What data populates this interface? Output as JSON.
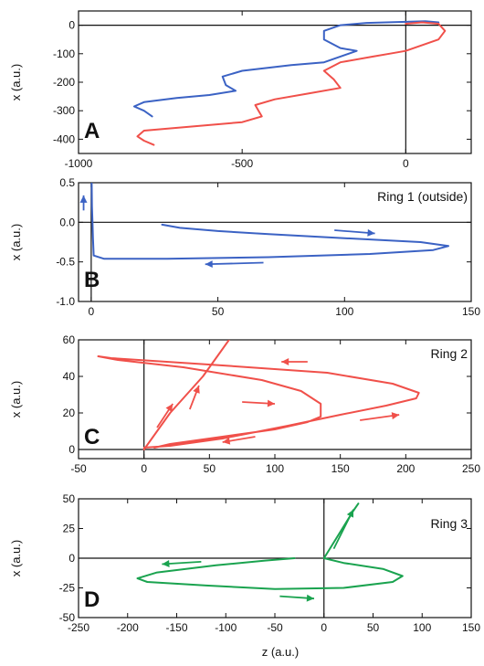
{
  "figure": {
    "xlabel_bottom": "z (a.u.)"
  },
  "chart_data": [
    {
      "panel": "A",
      "type": "line",
      "title": "",
      "xlabel": "",
      "ylabel": "x (a.u.)",
      "xlim": [
        -1000,
        200
      ],
      "ylim": [
        -450,
        50
      ],
      "xticks": [
        -1000,
        -500,
        0
      ],
      "yticks": [
        0,
        -100,
        -200,
        -300,
        -400
      ],
      "xtick_labels": [
        "-1000",
        "-500",
        "0"
      ],
      "ytick_labels": [
        "0",
        "-100",
        "-200",
        "-300",
        "-400"
      ],
      "reference_lines": {
        "x": 0,
        "y": 0
      },
      "series": [
        {
          "color": "#3b62c4",
          "points": [
            [
              100,
              10
            ],
            [
              60,
              14
            ],
            [
              0,
              12
            ],
            [
              -60,
              10
            ],
            [
              -120,
              8
            ],
            [
              -200,
              0
            ],
            [
              -250,
              -20
            ],
            [
              -250,
              -50
            ],
            [
              -200,
              -80
            ],
            [
              -150,
              -90
            ],
            [
              -200,
              -110
            ],
            [
              -250,
              -130
            ],
            [
              -350,
              -140
            ],
            [
              -500,
              -160
            ],
            [
              -560,
              -180
            ],
            [
              -550,
              -210
            ],
            [
              -520,
              -230
            ],
            [
              -600,
              -245
            ],
            [
              -700,
              -255
            ],
            [
              -800,
              -270
            ],
            [
              -830,
              -285
            ],
            [
              -800,
              -300
            ],
            [
              -775,
              -320
            ]
          ]
        },
        {
          "color": "#f0504a",
          "points": [
            [
              0,
              5
            ],
            [
              50,
              10
            ],
            [
              100,
              5
            ],
            [
              120,
              -20
            ],
            [
              100,
              -50
            ],
            [
              0,
              -90
            ],
            [
              -50,
              -100
            ],
            [
              -100,
              -110
            ],
            [
              -200,
              -130
            ],
            [
              -250,
              -160
            ],
            [
              -220,
              -190
            ],
            [
              -200,
              -220
            ],
            [
              -300,
              -240
            ],
            [
              -400,
              -260
            ],
            [
              -460,
              -280
            ],
            [
              -450,
              -300
            ],
            [
              -440,
              -320
            ],
            [
              -500,
              -340
            ],
            [
              -650,
              -355
            ],
            [
              -800,
              -370
            ],
            [
              -820,
              -390
            ],
            [
              -800,
              -405
            ],
            [
              -770,
              -420
            ]
          ]
        }
      ]
    },
    {
      "panel": "B",
      "type": "line",
      "title": "Ring 1 (outside)",
      "xlabel": "",
      "ylabel": "x (a.u.)",
      "xlim": [
        -5,
        150
      ],
      "ylim": [
        -1.0,
        0.5
      ],
      "xticks": [
        0,
        50,
        100,
        150
      ],
      "yticks": [
        0.5,
        0.0,
        -0.5,
        -1.0
      ],
      "xtick_labels": [
        "0",
        "50",
        "100",
        "150"
      ],
      "ytick_labels": [
        "0.5",
        "0.0",
        "-0.5",
        "-1.0"
      ],
      "reference_lines": {
        "x": 0,
        "y": 0
      },
      "series": [
        {
          "color": "#3b62c4",
          "points": [
            [
              28,
              -0.03
            ],
            [
              35,
              -0.07
            ],
            [
              50,
              -0.11
            ],
            [
              70,
              -0.15
            ],
            [
              100,
              -0.2
            ],
            [
              130,
              -0.25
            ],
            [
              141,
              -0.3
            ],
            [
              135,
              -0.35
            ],
            [
              110,
              -0.4
            ],
            [
              70,
              -0.44
            ],
            [
              30,
              -0.46
            ],
            [
              5,
              -0.46
            ],
            [
              1,
              -0.42
            ],
            [
              0.7,
              -0.2
            ],
            [
              0.5,
              0
            ],
            [
              0.3,
              0.2
            ],
            [
              0.2,
              0.5
            ]
          ]
        }
      ],
      "arrows": [
        {
          "from": [
            96,
            -0.1
          ],
          "to": [
            112,
            -0.14
          ]
        },
        {
          "from": [
            68,
            -0.51
          ],
          "to": [
            45,
            -0.53
          ]
        },
        {
          "from": [
            -3,
            0.15
          ],
          "to": [
            -3,
            0.34
          ]
        }
      ]
    },
    {
      "panel": "C",
      "type": "line",
      "title": "Ring 2",
      "xlabel": "",
      "ylabel": "x (a.u.)",
      "xlim": [
        -50,
        250
      ],
      "ylim": [
        -5,
        60
      ],
      "xticks": [
        -50,
        0,
        50,
        100,
        150,
        200,
        250
      ],
      "yticks": [
        0,
        20,
        40,
        60
      ],
      "xtick_labels": [
        "-50",
        "0",
        "50",
        "100",
        "150",
        "200",
        "250"
      ],
      "ytick_labels": [
        "0",
        "20",
        "40",
        "60"
      ],
      "reference_lines": {
        "x": 0,
        "y": 0
      },
      "series": [
        {
          "color": "#f0504a",
          "points": [
            [
              0,
              1
            ],
            [
              20,
              2
            ],
            [
              60,
              6
            ],
            [
              110,
              13
            ],
            [
              150,
              19
            ],
            [
              185,
              24
            ],
            [
              208,
              28
            ],
            [
              210,
              31
            ],
            [
              190,
              36
            ],
            [
              140,
              42
            ],
            [
              60,
              46
            ],
            [
              -25,
              50
            ],
            [
              -35,
              51
            ],
            [
              -20,
              49
            ],
            [
              30,
              45
            ],
            [
              90,
              38
            ],
            [
              120,
              32
            ],
            [
              135,
              25
            ],
            [
              135,
              18
            ],
            [
              125,
              15
            ],
            [
              100,
              11
            ],
            [
              50,
              6
            ],
            [
              20,
              3
            ],
            [
              8,
              1
            ]
          ]
        },
        {
          "color": "#f0504a",
          "points": [
            [
              0,
              0
            ],
            [
              20,
              20
            ],
            [
              45,
              40
            ],
            [
              60,
              55
            ],
            [
              65,
              60
            ]
          ]
        }
      ],
      "arrows": [
        {
          "from": [
            125,
            48
          ],
          "to": [
            105,
            48
          ]
        },
        {
          "from": [
            75,
            26
          ],
          "to": [
            100,
            25
          ]
        },
        {
          "from": [
            165,
            16
          ],
          "to": [
            195,
            19
          ]
        },
        {
          "from": [
            85,
            7
          ],
          "to": [
            60,
            4
          ]
        },
        {
          "from": [
            10,
            12
          ],
          "to": [
            22,
            25
          ]
        },
        {
          "from": [
            35,
            22
          ],
          "to": [
            42,
            35
          ]
        }
      ]
    },
    {
      "panel": "D",
      "type": "line",
      "title": "Ring 3",
      "xlabel": "z (a.u.)",
      "ylabel": "x (a.u.)",
      "xlim": [
        -250,
        150
      ],
      "ylim": [
        -50,
        50
      ],
      "xticks": [
        -250,
        -200,
        -150,
        -100,
        -50,
        0,
        50,
        100,
        150
      ],
      "yticks": [
        50,
        25,
        0,
        -25,
        -50
      ],
      "xtick_labels": [
        "-250",
        "-200",
        "-150",
        "-100",
        "-50",
        "0",
        "50",
        "100",
        "150"
      ],
      "ytick_labels": [
        "50",
        "25",
        "0",
        "-25",
        "-50"
      ],
      "reference_lines": {
        "x": 0,
        "y": 0
      },
      "series": [
        {
          "color": "#1aa34f",
          "points": [
            [
              -30,
              0
            ],
            [
              -60,
              -2
            ],
            [
              -110,
              -6
            ],
            [
              -170,
              -12
            ],
            [
              -190,
              -17
            ],
            [
              -180,
              -20
            ],
            [
              -120,
              -23
            ],
            [
              -50,
              -26
            ],
            [
              20,
              -25
            ],
            [
              70,
              -20
            ],
            [
              80,
              -15
            ],
            [
              60,
              -9
            ],
            [
              20,
              -4
            ],
            [
              0,
              0
            ],
            [
              15,
              20
            ],
            [
              30,
              40
            ],
            [
              35,
              46
            ]
          ]
        }
      ],
      "arrows": [
        {
          "from": [
            -125,
            -3
          ],
          "to": [
            -165,
            -5
          ]
        },
        {
          "from": [
            -45,
            -32
          ],
          "to": [
            -10,
            -34
          ]
        },
        {
          "from": [
            10,
            8
          ],
          "to": [
            30,
            41
          ]
        }
      ]
    }
  ]
}
